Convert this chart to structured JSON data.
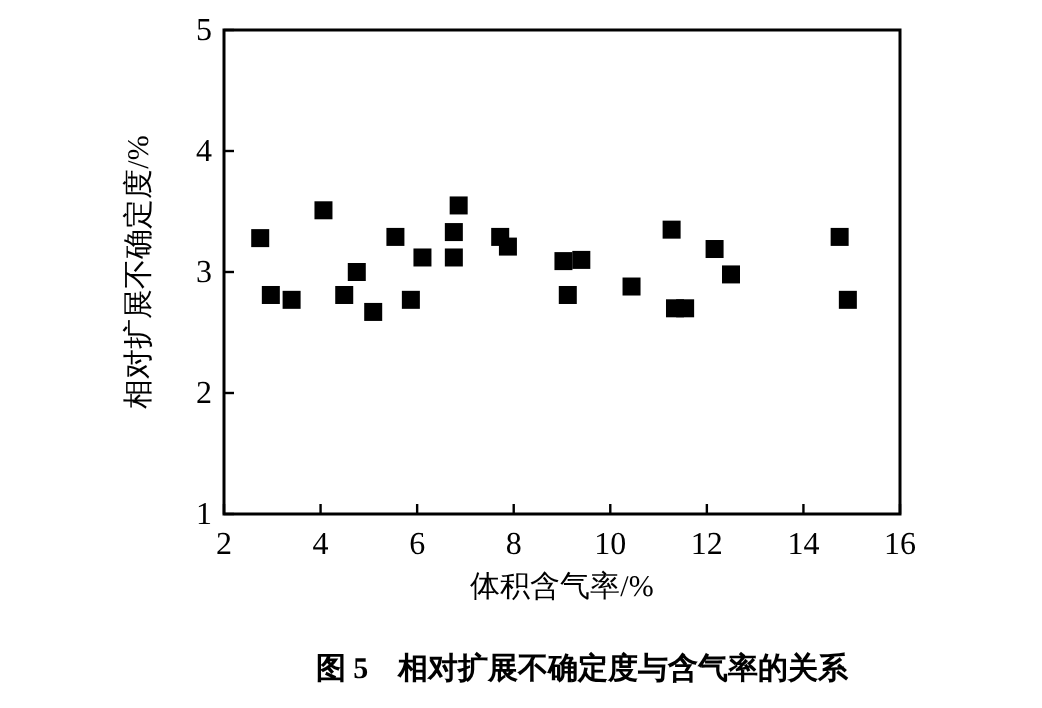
{
  "chart_data": {
    "type": "scatter",
    "title": "图 5　相对扩展不确定度与含气率的关系",
    "xlabel": "体积含气率/%",
    "ylabel": "相对扩展不确定度/%",
    "x": [
      2.75,
      2.97,
      3.4,
      4.06,
      4.49,
      4.75,
      5.09,
      5.55,
      5.87,
      6.11,
      6.76,
      6.76,
      6.86,
      7.72,
      7.88,
      9.03,
      9.12,
      9.4,
      10.44,
      11.27,
      11.34,
      11.55,
      12.16,
      12.5,
      14.75,
      14.92
    ],
    "series": [
      {
        "color": "#000000",
        "values": [
          3.28,
          2.81,
          2.77,
          3.51,
          2.81,
          3.0,
          2.67,
          3.29,
          2.77,
          3.12,
          3.33,
          3.12,
          3.55,
          3.29,
          3.21,
          3.09,
          2.81,
          3.1,
          2.88,
          3.35,
          2.7,
          2.7,
          3.19,
          2.98,
          3.29,
          2.77
        ]
      }
    ],
    "xlim": [
      2,
      16
    ],
    "xticks": [
      2,
      4,
      6,
      8,
      10,
      12,
      14,
      16
    ],
    "ylim": [
      1,
      5
    ],
    "yticks": [
      1,
      2,
      3,
      4,
      5
    ],
    "marker": "square",
    "grid": false
  }
}
